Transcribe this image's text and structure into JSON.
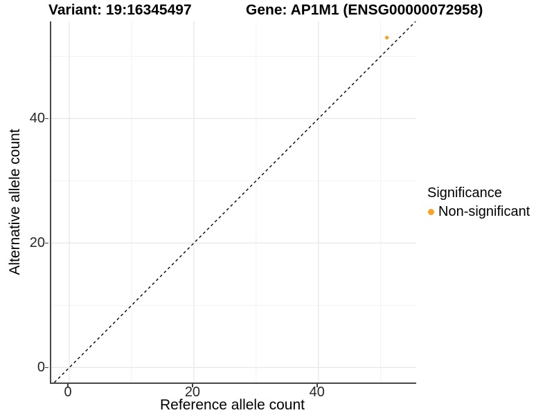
{
  "titles": {
    "left": "Variant: 19:16345497",
    "right": "Gene: AP1M1 (ENSG00000072958)"
  },
  "chart_data": {
    "type": "scatter",
    "title_left": "Variant: 19:16345497",
    "title_right": "Gene: AP1M1 (ENSG00000072958)",
    "xlabel": "Reference allele count",
    "ylabel": "Alternative allele count",
    "xlim": [
      -2.9,
      55.7
    ],
    "ylim": [
      -2.4,
      55.6
    ],
    "x_major_ticks": [
      0,
      20,
      40
    ],
    "y_major_ticks": [
      0,
      20,
      40
    ],
    "x_minor_gridlines": [
      10,
      30,
      50
    ],
    "y_minor_gridlines": [
      10,
      30,
      50
    ],
    "grid": true,
    "points": [
      {
        "x": 51,
        "y": 53,
        "series": "Non-significant"
      }
    ],
    "identity_line": {
      "equation": "y = x",
      "style": "dashed",
      "color": "#000000"
    },
    "legend": {
      "title": "Significance",
      "position": "right",
      "items": [
        {
          "label": "Non-significant",
          "color": "#F9A326"
        }
      ]
    }
  },
  "colors": {
    "point_orange": "#F9A326",
    "axis_line": "#474747",
    "tick_mark": "#3a3a3a",
    "grid_major": "#e7e7e7",
    "grid_minor": "#f2f2f2",
    "tick_text": "#262626",
    "background": "#ffffff"
  }
}
